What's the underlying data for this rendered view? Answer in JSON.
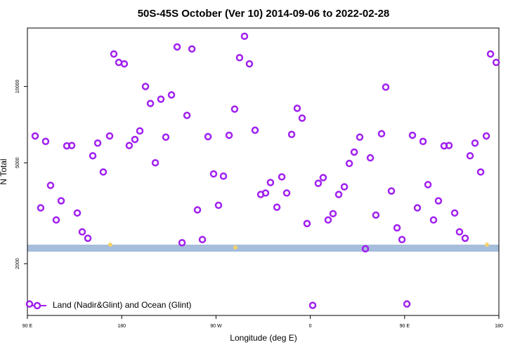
{
  "chart_data": {
    "type": "scatter",
    "title": "50S-45S October (Ver 10)   2014-09-06 to 2022-02-28",
    "x_label": "Longitude (deg E)",
    "y_label": "N Total",
    "log_y": true,
    "legend": "bottomleft",
    "xlim": [
      90,
      540
    ],
    "ylim": [
      1250,
      17000
    ],
    "xticks": [
      {
        "value": 90,
        "label": "90 E"
      },
      {
        "value": 180,
        "label": "180"
      },
      {
        "value": 270,
        "label": "90 W"
      },
      {
        "value": 360,
        "label": "0"
      },
      {
        "value": 450,
        "label": "90 E"
      },
      {
        "value": 540,
        "label": "180"
      }
    ],
    "yticks": [
      2000,
      5000,
      10000
    ],
    "series": [
      {
        "name": "Land (Nadir&Glint) and Ocean (Glint)",
        "color": "#a020f0",
        "x": [
          92.0,
          97.4,
          102.7,
          107.4,
          112.1,
          117.5,
          122.2,
          127.6,
          132.3,
          137.6,
          142.3,
          147.7,
          152.4,
          157.1,
          162.4,
          168.5,
          172.5,
          177.2,
          182.5,
          187.2,
          192.6,
          197.3,
          202.7,
          207.4,
          212.1,
          217.4,
          222.1,
          227.5,
          232.9,
          237.6,
          242.3,
          247.0,
          252.3,
          257.0,
          262.4,
          267.7,
          272.4,
          277.1,
          282.5,
          287.8,
          292.5,
          297.2,
          301.9,
          307.3,
          312.7,
          317.3,
          322.0,
          328.1,
          332.8,
          337.5,
          342.2,
          347.5,
          352.2,
          356.9,
          362.3,
          367.6,
          372.3,
          377.0,
          381.7,
          387.1,
          392.5,
          397.2,
          401.9,
          407.2,
          412.6,
          417.3,
          422.6,
          428.0,
          432.0,
          437.4,
          442.8,
          447.5,
          452.2,
          457.5,
          462.2,
          467.6,
          472.3,
          477.6,
          482.3,
          487.7,
          492.4,
          497.8,
          502.4,
          507.8,
          512.5,
          517.2,
          522.6,
          528.0,
          532.0,
          537.4
        ],
        "values": [
          1387,
          6380,
          3320,
          6070,
          4074,
          2975,
          3540,
          5830,
          5850,
          3170,
          2670,
          2520,
          5330,
          5980,
          4600,
          6380,
          13430,
          12440,
          12280,
          5850,
          6180,
          6680,
          10000,
          8570,
          5000,
          8910,
          6310,
          9260,
          14320,
          2420,
          7690,
          14060,
          3260,
          2490,
          6340,
          4520,
          3400,
          4430,
          6420,
          8140,
          12990,
          15780,
          12280,
          6720,
          3750,
          3800,
          4180,
          3340,
          4400,
          3800,
          6470,
          8200,
          7500,
          2880,
          1370,
          4150,
          4370,
          2975,
          3150,
          3750,
          4020,
          4970,
          5510,
          6310,
          2290,
          5230,
          3110,
          6510,
          9940,
          3870,
          2770,
          2490,
          1387,
          6420,
          3320,
          6070,
          4100,
          2975,
          3540,
          5830,
          5850,
          3170,
          2670,
          2520,
          5330,
          5980,
          4600,
          6380,
          13430,
          12440
        ]
      },
      {
        "color": "#f7d26a",
        "x": [
          169.1,
          288.5,
          528.6
        ],
        "values": [
          2377,
          2318,
          2377
        ]
      }
    ]
  }
}
